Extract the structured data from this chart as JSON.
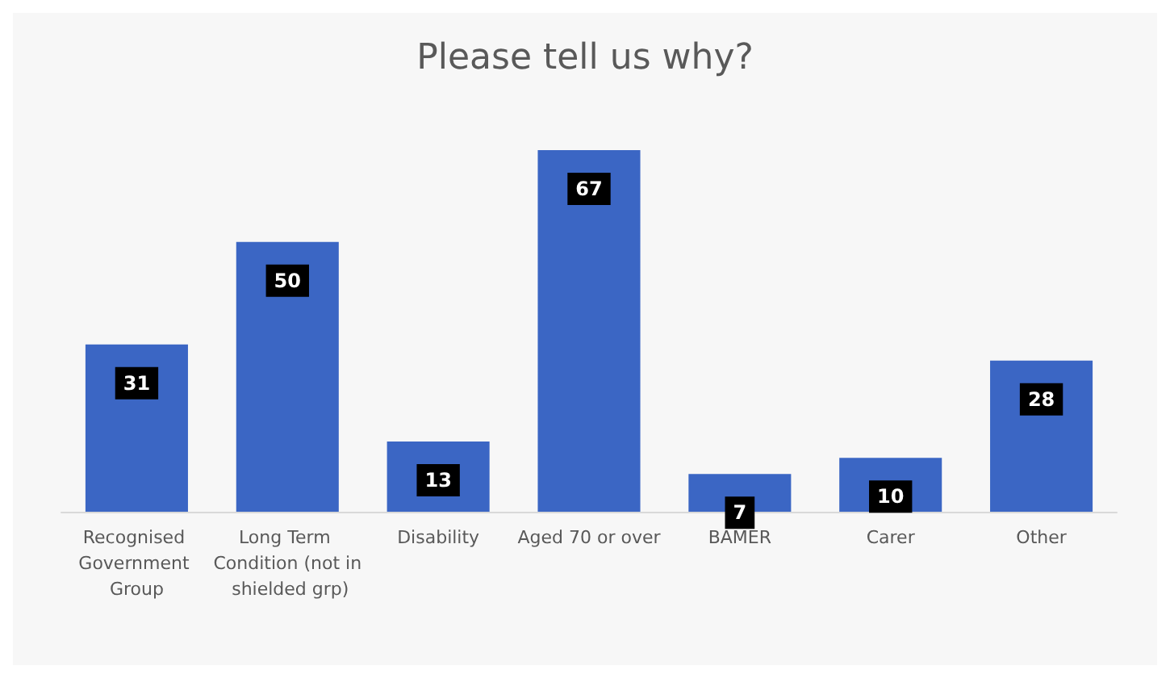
{
  "chart_data": {
    "type": "bar",
    "title": "Please tell us why?",
    "categories": [
      "Recognised Government Group",
      "Long Term Condition (not in shielded grp)",
      "Disability",
      "Aged 70 or over",
      "BAMER",
      "Carer",
      "Other"
    ],
    "values": [
      31,
      50,
      13,
      67,
      7,
      10,
      28
    ],
    "color": "#3b66c4",
    "data_labels": true
  }
}
